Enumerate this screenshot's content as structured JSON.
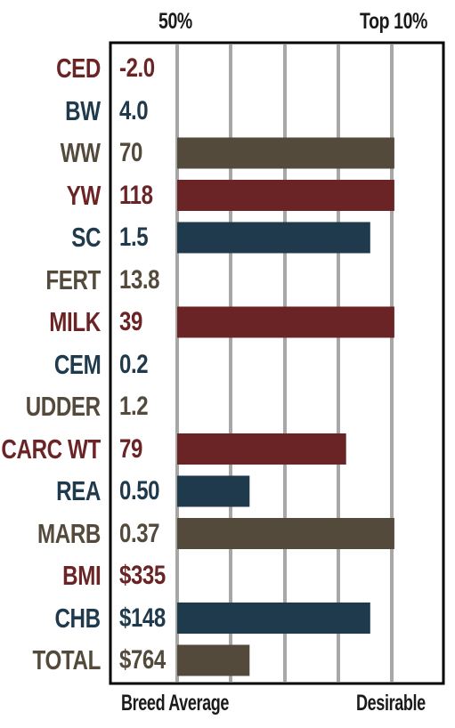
{
  "header": {
    "left_label": "50%",
    "right_label": "Top 10%"
  },
  "footer": {
    "left_label": "Breed Average",
    "right_label": "Desirable"
  },
  "colors": {
    "red": "#6b2425",
    "blue": "#1f3a4d",
    "brown": "#544a3c",
    "grid": "#a9a6a6",
    "frame": "#000000"
  },
  "chart_data": {
    "type": "bar",
    "orientation": "horizontal",
    "title": "",
    "xlabel": "",
    "ylabel": "",
    "xlim": [
      0,
      100
    ],
    "grid": true,
    "categories": [
      "CED",
      "BW",
      "WW",
      "YW",
      "SC",
      "FERT",
      "MILK",
      "CEM",
      "UDDER",
      "CARC WT",
      "REA",
      "MARB",
      "BMI",
      "CHB",
      "TOTAL"
    ],
    "value_labels": [
      "-2.0",
      "4.0",
      "70",
      "118",
      "1.5",
      "13.8",
      "39",
      "0.2",
      "1.2",
      "79",
      "0.50",
      "0.37",
      "$335",
      "$148",
      "$764"
    ],
    "values": [
      0,
      0,
      90,
      90,
      80,
      0,
      90,
      0,
      0,
      70,
      30,
      90,
      0,
      80,
      30
    ],
    "bar_colors": [
      "red",
      "blue",
      "brown",
      "red",
      "blue",
      "brown",
      "red",
      "blue",
      "brown",
      "red",
      "blue",
      "brown",
      "red",
      "blue",
      "brown"
    ]
  }
}
